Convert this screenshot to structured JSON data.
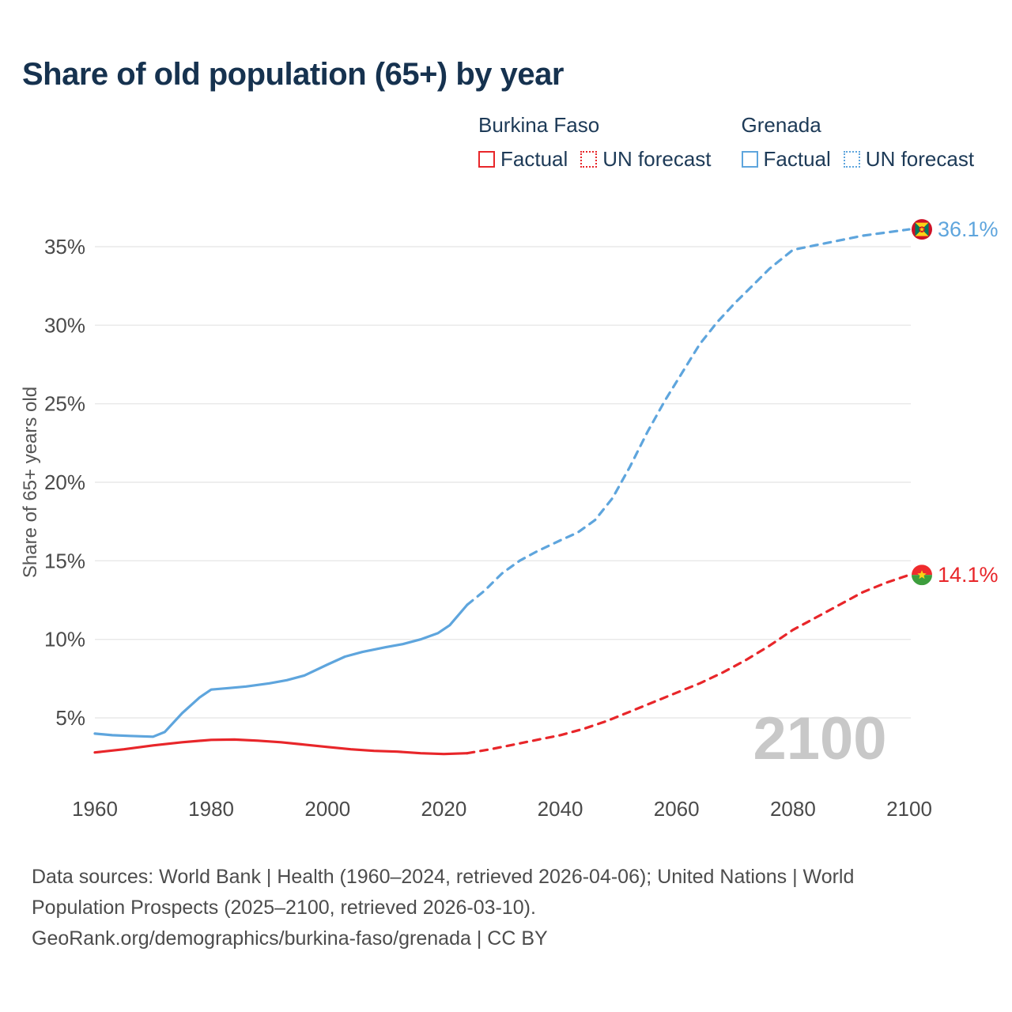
{
  "title": "Share of old population (65+) by year",
  "legend": {
    "groups": [
      {
        "country": "Burkina Faso",
        "color_key": "burkina",
        "items": [
          {
            "label": "Factual",
            "style": "solid"
          },
          {
            "label": "UN forecast",
            "style": "dotted"
          }
        ]
      },
      {
        "country": "Grenada",
        "color_key": "grenada",
        "items": [
          {
            "label": "Factual",
            "style": "solid"
          },
          {
            "label": "UN forecast",
            "style": "dotted"
          }
        ]
      }
    ]
  },
  "colors": {
    "burkina": "#e8262a",
    "grenada": "#5ea5dd",
    "title": "#16324f",
    "axis_text": "#4a4a4a",
    "grid": "#e8e8e8",
    "watermark": "#c8c8c8",
    "footer": "#4c4c4c",
    "ylabel_text": "#555555"
  },
  "chart_data": {
    "type": "line",
    "title": "Share of old population (65+) by year",
    "xlabel": "",
    "ylabel": "Share of 65+ years old",
    "x_ticks": [
      1960,
      1980,
      2000,
      2020,
      2040,
      2060,
      2080,
      2100
    ],
    "y_ticks": [
      5,
      10,
      15,
      20,
      25,
      30,
      35
    ],
    "y_tick_suffix": "%",
    "xlim": [
      1960,
      2115
    ],
    "ylim": [
      2,
      38.5
    ],
    "grid": "horizontal",
    "legend_position": "top-right",
    "watermark": "2100",
    "series": [
      {
        "name": "Grenada Factual",
        "country": "Grenada",
        "segment": "factual",
        "color_key": "grenada",
        "dash": "solid",
        "points": [
          [
            1960,
            4.0
          ],
          [
            1963,
            3.9
          ],
          [
            1966,
            3.85
          ],
          [
            1970,
            3.8
          ],
          [
            1972,
            4.1
          ],
          [
            1975,
            5.3
          ],
          [
            1978,
            6.3
          ],
          [
            1980,
            6.8
          ],
          [
            1983,
            6.9
          ],
          [
            1986,
            7.0
          ],
          [
            1990,
            7.2
          ],
          [
            1993,
            7.4
          ],
          [
            1996,
            7.7
          ],
          [
            2000,
            8.4
          ],
          [
            2003,
            8.9
          ],
          [
            2006,
            9.2
          ],
          [
            2010,
            9.5
          ],
          [
            2013,
            9.7
          ],
          [
            2016,
            10.0
          ],
          [
            2019,
            10.4
          ],
          [
            2021,
            10.9
          ],
          [
            2024,
            12.2
          ]
        ]
      },
      {
        "name": "Grenada UN forecast",
        "country": "Grenada",
        "segment": "forecast",
        "color_key": "grenada",
        "dash": "dashed",
        "points": [
          [
            2024,
            12.2
          ],
          [
            2027,
            13.1
          ],
          [
            2030,
            14.2
          ],
          [
            2033,
            15.0
          ],
          [
            2036,
            15.6
          ],
          [
            2040,
            16.3
          ],
          [
            2043,
            16.8
          ],
          [
            2046,
            17.6
          ],
          [
            2049,
            19.0
          ],
          [
            2052,
            21.0
          ],
          [
            2055,
            23.2
          ],
          [
            2058,
            25.2
          ],
          [
            2061,
            27.0
          ],
          [
            2064,
            28.8
          ],
          [
            2067,
            30.2
          ],
          [
            2070,
            31.4
          ],
          [
            2073,
            32.5
          ],
          [
            2076,
            33.6
          ],
          [
            2080,
            34.8
          ],
          [
            2084,
            35.1
          ],
          [
            2088,
            35.4
          ],
          [
            2092,
            35.7
          ],
          [
            2096,
            35.9
          ],
          [
            2100,
            36.1
          ]
        ]
      },
      {
        "name": "Burkina Faso Factual",
        "country": "Burkina Faso",
        "segment": "factual",
        "color_key": "burkina",
        "dash": "solid",
        "points": [
          [
            1960,
            2.8
          ],
          [
            1965,
            3.0
          ],
          [
            1970,
            3.25
          ],
          [
            1975,
            3.45
          ],
          [
            1980,
            3.6
          ],
          [
            1984,
            3.62
          ],
          [
            1988,
            3.55
          ],
          [
            1992,
            3.45
          ],
          [
            1996,
            3.3
          ],
          [
            2000,
            3.15
          ],
          [
            2004,
            3.0
          ],
          [
            2008,
            2.9
          ],
          [
            2012,
            2.85
          ],
          [
            2016,
            2.75
          ],
          [
            2020,
            2.7
          ],
          [
            2024,
            2.75
          ]
        ]
      },
      {
        "name": "Burkina Faso UN forecast",
        "country": "Burkina Faso",
        "segment": "forecast",
        "color_key": "burkina",
        "dash": "dashed",
        "points": [
          [
            2024,
            2.75
          ],
          [
            2028,
            3.0
          ],
          [
            2032,
            3.3
          ],
          [
            2036,
            3.6
          ],
          [
            2040,
            3.9
          ],
          [
            2044,
            4.3
          ],
          [
            2048,
            4.8
          ],
          [
            2052,
            5.4
          ],
          [
            2056,
            6.0
          ],
          [
            2060,
            6.6
          ],
          [
            2064,
            7.2
          ],
          [
            2068,
            7.9
          ],
          [
            2072,
            8.7
          ],
          [
            2076,
            9.6
          ],
          [
            2080,
            10.6
          ],
          [
            2084,
            11.4
          ],
          [
            2088,
            12.2
          ],
          [
            2092,
            13.0
          ],
          [
            2096,
            13.6
          ],
          [
            2100,
            14.1
          ]
        ]
      }
    ],
    "end_labels": [
      {
        "text": "36.1%",
        "value": 36.1,
        "color_key": "grenada",
        "flag": "grenada"
      },
      {
        "text": "14.1%",
        "value": 14.1,
        "color_key": "burkina",
        "flag": "burkina"
      }
    ]
  },
  "footer": {
    "lines": [
      "Data sources: World Bank | Health (1960–2024, retrieved 2026-04-06); United Nations | World",
      "Population Prospects (2025–2100, retrieved 2026-03-10).",
      "GeoRank.org/demographics/burkina-faso/grenada | CC BY"
    ]
  }
}
